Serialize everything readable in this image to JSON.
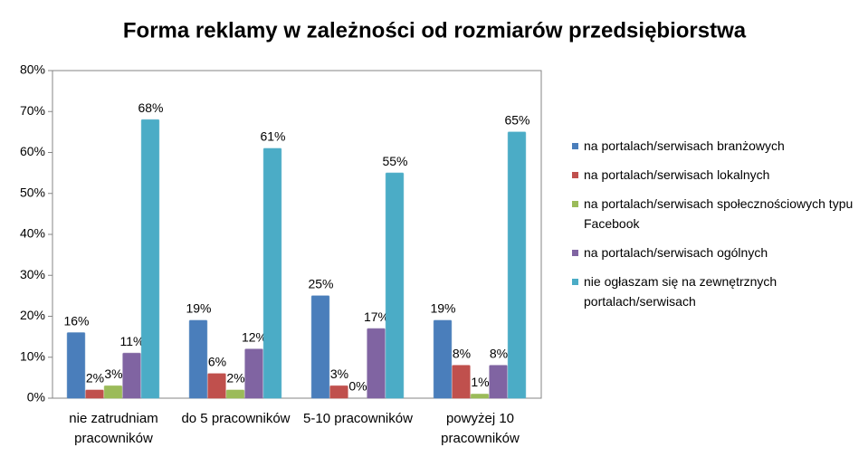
{
  "chart_data": {
    "type": "bar",
    "title": "Forma reklamy w zależności od rozmiarów przedsiębiorstwa",
    "categories": [
      "nie zatrudniam pracowników",
      "do 5 pracowników",
      "5-10 pracowników",
      "powyżej 10 pracowników"
    ],
    "series": [
      {
        "name": "na portalach/serwisach branżowych",
        "color": "#4a7ebb",
        "values": [
          16,
          19,
          25,
          19
        ],
        "value_labels": [
          "16%",
          "19%",
          "25%",
          "19%"
        ]
      },
      {
        "name": "na portalach/serwisach lokalnych",
        "color": "#c0504d",
        "values": [
          2,
          6,
          3,
          8
        ],
        "value_labels": [
          "2%",
          "6%",
          "3%",
          "8%"
        ]
      },
      {
        "name": "na portalach/serwisach społecznościowych typu Facebook",
        "color": "#9bbb59",
        "values": [
          3,
          2,
          0,
          1
        ],
        "value_labels": [
          "3%",
          "2%",
          "0%",
          "1%"
        ]
      },
      {
        "name": "na portalach/serwisach ogólnych",
        "color": "#8064a2",
        "values": [
          11,
          12,
          17,
          8
        ],
        "value_labels": [
          "11%",
          "12%",
          "17%",
          "8%"
        ]
      },
      {
        "name": "nie ogłaszam się na zewnętrznych portalach/serwisach",
        "color": "#4bacc6",
        "values": [
          68,
          61,
          55,
          65
        ],
        "value_labels": [
          "68%",
          "61%",
          "55%",
          "65%"
        ]
      }
    ],
    "ylim": [
      0,
      80
    ],
    "yticks": [
      {
        "value": 0,
        "label": "0%"
      },
      {
        "value": 10,
        "label": "10%"
      },
      {
        "value": 20,
        "label": "20%"
      },
      {
        "value": 30,
        "label": "30%"
      },
      {
        "value": 40,
        "label": "40%"
      },
      {
        "value": 50,
        "label": "50%"
      },
      {
        "value": 60,
        "label": "60%"
      },
      {
        "value": 70,
        "label": "70%"
      },
      {
        "value": 80,
        "label": "80%"
      }
    ],
    "grid": false,
    "legend": "right"
  }
}
